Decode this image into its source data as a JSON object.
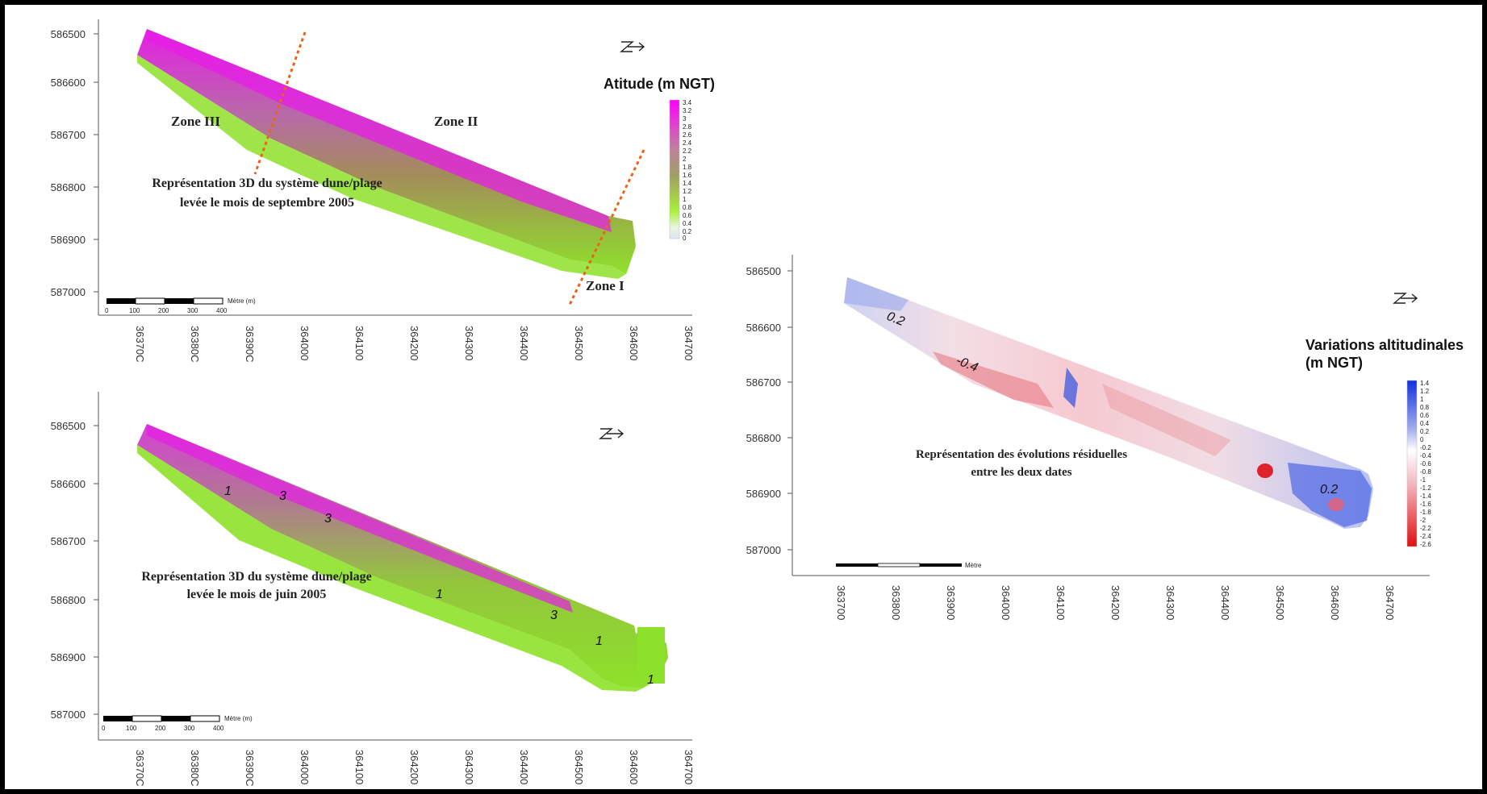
{
  "panel_sep": {
    "y_ticks": [
      "586500",
      "586600",
      "586700",
      "586800",
      "586900",
      "587000"
    ],
    "x_ticks": [
      "36370C",
      "36380C",
      "36390C",
      "364000",
      "364100",
      "364200",
      "364300",
      "364400",
      "364500",
      "364600",
      "364700"
    ],
    "zones": [
      "Zone III",
      "Zone II",
      "Zone I"
    ],
    "caption_line1": "Représentation 3D du système dune/plage",
    "caption_line2": "levée le mois de septembre 2005",
    "legend_title": "Atitude (m NGT)",
    "scale_labels": [
      "0",
      "100",
      "200",
      "300",
      "400"
    ],
    "scale_unit": "Mètre (m)"
  },
  "panel_jun": {
    "y_ticks": [
      "586500",
      "586600",
      "586700",
      "586800",
      "586900",
      "587000"
    ],
    "x_ticks": [
      "36370C",
      "36380C",
      "36390C",
      "364000",
      "364100",
      "364200",
      "364300",
      "364400",
      "364500",
      "364600",
      "364700"
    ],
    "contours": [
      "1",
      "3",
      "3",
      "1",
      "3",
      "1",
      "1"
    ],
    "caption_line1": "Représentation 3D du système dune/plage",
    "caption_line2": "levée le mois de juin 2005",
    "scale_labels": [
      "0",
      "100",
      "200",
      "300",
      "400"
    ],
    "scale_unit": "Mètre (m)"
  },
  "panel_diff": {
    "y_ticks": [
      "586500",
      "586600",
      "586700",
      "586800",
      "586900",
      "587000"
    ],
    "x_ticks": [
      "363700",
      "363800",
      "363900",
      "364000",
      "364100",
      "364200",
      "364300",
      "364400",
      "364500",
      "364600",
      "364700"
    ],
    "contours": [
      "0.2",
      "-0.4",
      "0.2"
    ],
    "caption_line1": "Représentation des évolutions résiduelles",
    "caption_line2": "entre les deux dates",
    "legend_title_line1": "Variations altitudinales",
    "legend_title_line2": "(m NGT)",
    "scale_unit": "Mètre"
  },
  "colors": {
    "magenta": "#e61ee6",
    "green": "#8ee12a",
    "brown": "#a9806a",
    "blue": "#2b3fd6",
    "red": "#e0222c"
  }
}
